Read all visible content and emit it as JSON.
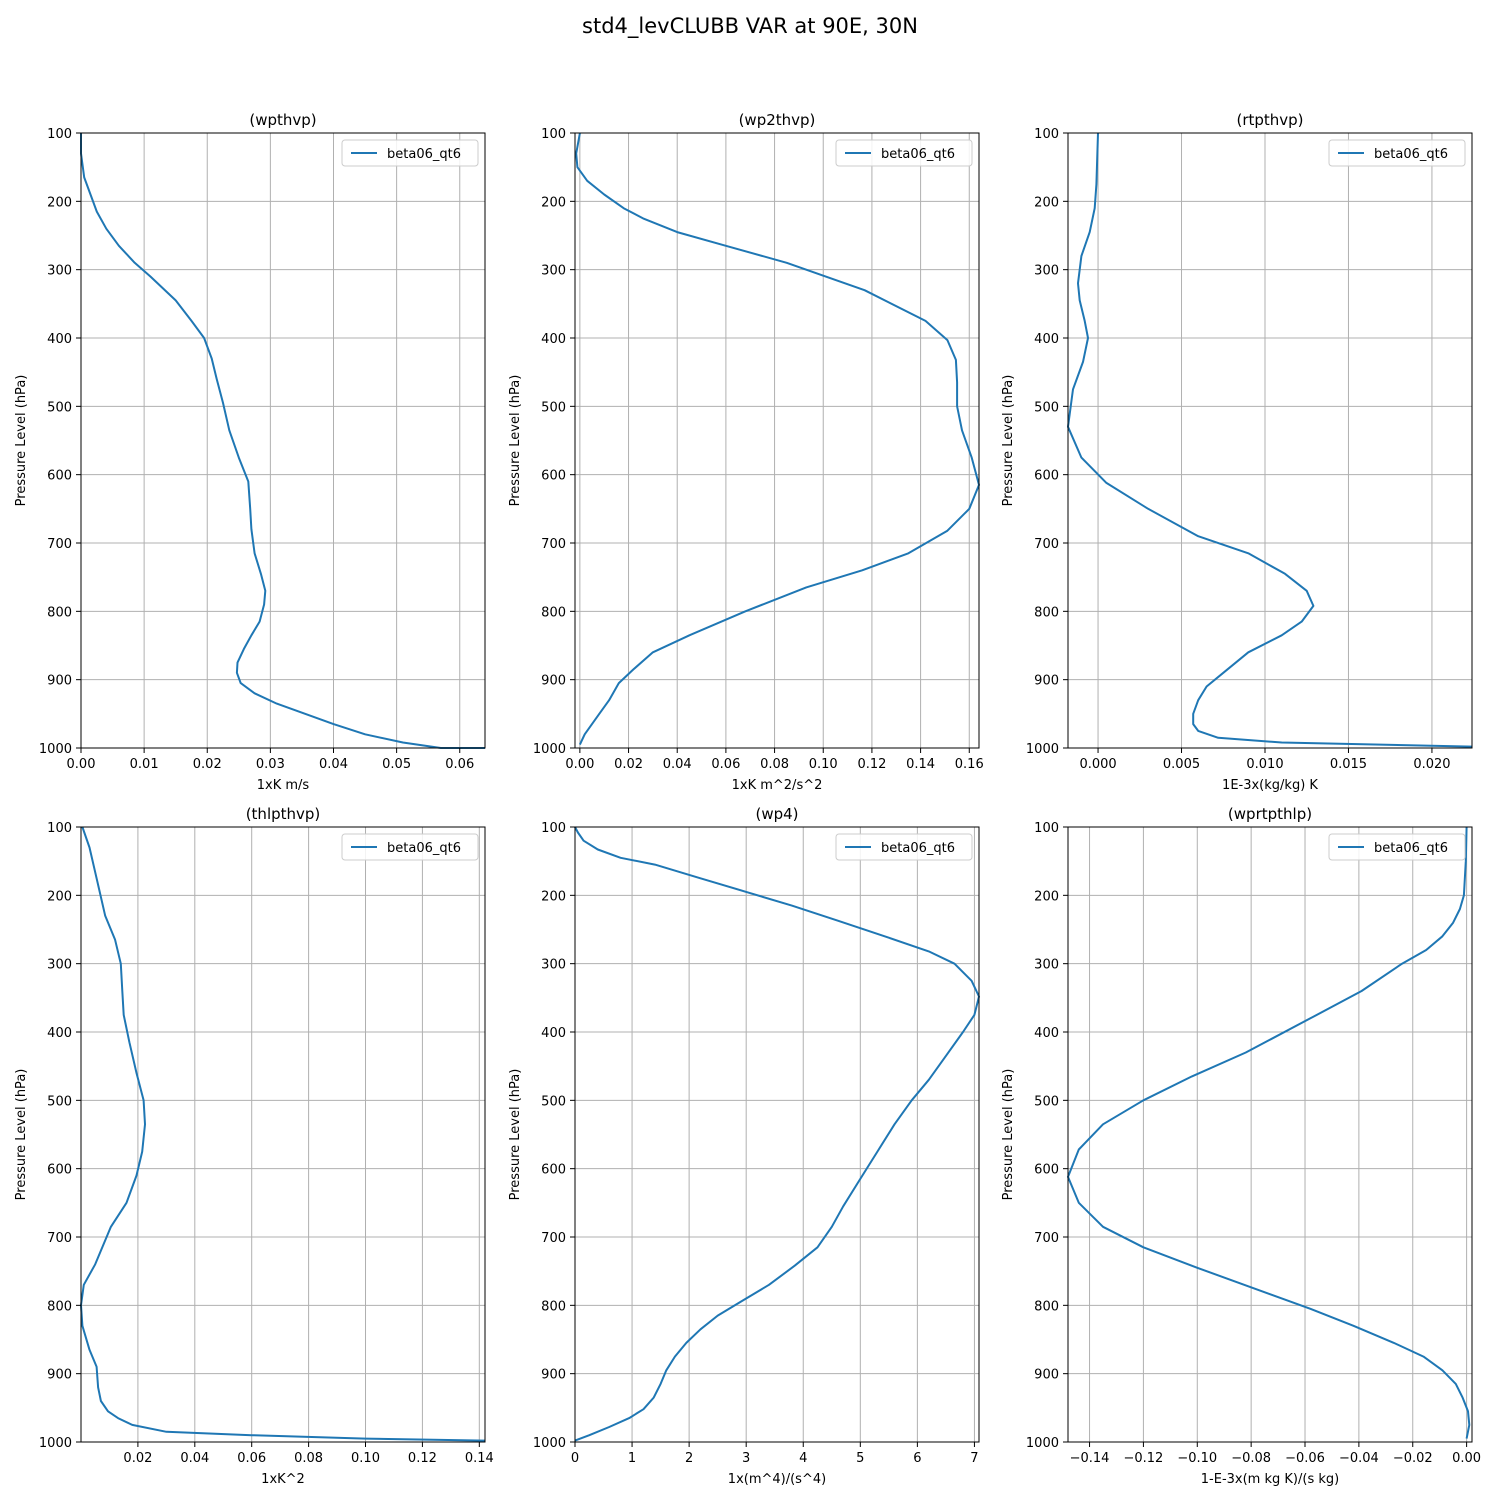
{
  "figure": {
    "suptitle": "std4_levCLUBB VAR at 90E, 30N"
  },
  "style": {
    "line_color": "#1f77b4",
    "grid_color": "#b0b0b0"
  },
  "chart_data": [
    {
      "type": "line",
      "title": "(wpthvp)",
      "xlabel": "1xK m/s",
      "ylabel": "Pressure Level (hPa)",
      "xlim": [
        0,
        0.064
      ],
      "ylim": [
        1000,
        100
      ],
      "y_inverted": true,
      "xticks": [
        0,
        0.01,
        0.02,
        0.03,
        0.04,
        0.05,
        0.06
      ],
      "xtick_labels": [
        "0.00",
        "0.01",
        "0.02",
        "0.03",
        "0.04",
        "0.05",
        "0.06"
      ],
      "yticks": [
        100,
        200,
        300,
        400,
        500,
        600,
        700,
        800,
        900,
        1000
      ],
      "grid": true,
      "legend": "top-right",
      "series": [
        {
          "name": "beta06_qt6",
          "x": [
            0.0,
            0.0,
            0.0005,
            0.0015,
            0.0025,
            0.004,
            0.006,
            0.0085,
            0.011,
            0.015,
            0.0175,
            0.0195,
            0.0207,
            0.0215,
            0.0225,
            0.0235,
            0.025,
            0.0265,
            0.0268,
            0.027,
            0.0275,
            0.0285,
            0.0292,
            0.029,
            0.0283,
            0.027,
            0.0258,
            0.0248,
            0.0247,
            0.0253,
            0.0275,
            0.031,
            0.0355,
            0.04,
            0.045,
            0.051,
            0.057,
            0.062,
            0.064
          ],
          "y": [
            100,
            130,
            165,
            190,
            215,
            240,
            265,
            290,
            310,
            345,
            375,
            400,
            430,
            460,
            495,
            535,
            575,
            610,
            650,
            680,
            715,
            745,
            770,
            790,
            815,
            835,
            855,
            875,
            890,
            905,
            920,
            935,
            950,
            965,
            980,
            992,
            1000,
            1000,
            1000
          ]
        }
      ]
    },
    {
      "type": "line",
      "title": "(wp2thvp)",
      "xlabel": "1xK m^2/s^2",
      "ylabel": "Pressure Level (hPa)",
      "xlim": [
        -0.002,
        0.164
      ],
      "ylim": [
        1000,
        100
      ],
      "y_inverted": true,
      "xticks": [
        0,
        0.02,
        0.04,
        0.06,
        0.08,
        0.1,
        0.12,
        0.14,
        0.16
      ],
      "xtick_labels": [
        "0.00",
        "0.02",
        "0.04",
        "0.06",
        "0.08",
        "0.10",
        "0.12",
        "0.14",
        "0.16"
      ],
      "yticks": [
        100,
        200,
        300,
        400,
        500,
        600,
        700,
        800,
        900,
        1000
      ],
      "grid": true,
      "legend": "top-right",
      "series": [
        {
          "name": "beta06_qt6",
          "x": [
            0.0,
            -0.0015,
            -0.001,
            0.003,
            0.01,
            0.018,
            0.026,
            0.04,
            0.06,
            0.085,
            0.105,
            0.117,
            0.127,
            0.142,
            0.151,
            0.1545,
            0.155,
            0.155,
            0.157,
            0.161,
            0.164,
            0.16,
            0.151,
            0.135,
            0.116,
            0.093,
            0.068,
            0.045,
            0.03,
            0.022,
            0.016,
            0.012,
            0.008,
            0.005,
            0.002,
            0.0
          ],
          "y": [
            100,
            130,
            150,
            170,
            190,
            210,
            225,
            245,
            265,
            290,
            315,
            330,
            348,
            375,
            403,
            432,
            465,
            500,
            535,
            575,
            615,
            650,
            682,
            715,
            740,
            765,
            800,
            835,
            860,
            885,
            905,
            930,
            950,
            965,
            980,
            995
          ]
        }
      ]
    },
    {
      "type": "line",
      "title": "(rtpthvp)",
      "xlabel": "1E-3x(kg/kg) K",
      "ylabel": "Pressure Level (hPa)",
      "xlim": [
        -0.0018,
        0.0224
      ],
      "ylim": [
        1000,
        100
      ],
      "y_inverted": true,
      "xticks": [
        0,
        0.005,
        0.01,
        0.015,
        0.02
      ],
      "xtick_labels": [
        "0.000",
        "0.005",
        "0.010",
        "0.015",
        "0.020"
      ],
      "yticks": [
        100,
        200,
        300,
        400,
        500,
        600,
        700,
        800,
        900,
        1000
      ],
      "grid": true,
      "legend": "top-right",
      "series": [
        {
          "name": "beta06_qt6",
          "x": [
            0.0,
            -0.0001,
            -0.0002,
            -0.0005,
            -0.001,
            -0.0012,
            -0.0011,
            -0.0008,
            -0.0006,
            -0.0009,
            -0.0015,
            -0.0018,
            -0.001,
            0.0005,
            0.003,
            0.006,
            0.009,
            0.0112,
            0.0125,
            0.0129,
            0.0122,
            0.011,
            0.009,
            0.0075,
            0.0065,
            0.006,
            0.0057,
            0.0057,
            0.006,
            0.0072,
            0.011,
            0.0224
          ],
          "y": [
            100,
            175,
            210,
            245,
            280,
            320,
            345,
            375,
            400,
            435,
            475,
            530,
            575,
            612,
            650,
            690,
            715,
            745,
            770,
            792,
            815,
            835,
            860,
            890,
            910,
            930,
            950,
            965,
            975,
            985,
            992,
            998
          ]
        }
      ]
    },
    {
      "type": "line",
      "title": "(thlpthvp)",
      "xlabel": "1xK^2",
      "ylabel": "Pressure Level (hPa)",
      "xlim": [
        0,
        0.142
      ],
      "ylim": [
        1000,
        100
      ],
      "y_inverted": true,
      "xticks": [
        0.02,
        0.04,
        0.06,
        0.08,
        0.1,
        0.12,
        0.14
      ],
      "xtick_labels": [
        "0.02",
        "0.04",
        "0.06",
        "0.08",
        "0.10",
        "0.12",
        "0.14"
      ],
      "yticks": [
        100,
        200,
        300,
        400,
        500,
        600,
        700,
        800,
        900,
        1000
      ],
      "grid": true,
      "legend": "top-right",
      "series": [
        {
          "name": "beta06_qt6",
          "x": [
            0.0005,
            0.003,
            0.0055,
            0.0085,
            0.012,
            0.014,
            0.0145,
            0.015,
            0.017,
            0.0195,
            0.022,
            0.0225,
            0.0215,
            0.0195,
            0.016,
            0.0105,
            0.005,
            0.001,
            0.0,
            0.0005,
            0.003,
            0.0055,
            0.006,
            0.007,
            0.0095,
            0.013,
            0.018,
            0.03,
            0.06,
            0.1,
            0.142
          ],
          "y": [
            100,
            130,
            175,
            230,
            265,
            300,
            340,
            375,
            415,
            460,
            500,
            535,
            575,
            610,
            650,
            685,
            740,
            770,
            800,
            830,
            865,
            890,
            920,
            940,
            955,
            965,
            975,
            985,
            990,
            995,
            998
          ]
        }
      ]
    },
    {
      "type": "line",
      "title": "(wp4)",
      "xlabel": "1x(m^4)/(s^4)",
      "ylabel": "Pressure Level (hPa)",
      "xlim": [
        0,
        7.08
      ],
      "ylim": [
        1000,
        100
      ],
      "y_inverted": true,
      "xticks": [
        0,
        1,
        2,
        3,
        4,
        5,
        6,
        7
      ],
      "xtick_labels": [
        "0",
        "1",
        "2",
        "3",
        "4",
        "5",
        "6",
        "7"
      ],
      "yticks": [
        100,
        200,
        300,
        400,
        500,
        600,
        700,
        800,
        900,
        1000
      ],
      "grid": true,
      "legend": "top-right",
      "series": [
        {
          "name": "beta06_qt6",
          "x": [
            0.0,
            0.05,
            0.15,
            0.4,
            0.8,
            1.4,
            2.2,
            3.0,
            3.8,
            4.6,
            5.5,
            6.2,
            6.65,
            6.95,
            7.08,
            7.0,
            6.8,
            6.5,
            6.2,
            5.9,
            5.6,
            5.3,
            5.0,
            4.7,
            4.5,
            4.25,
            3.85,
            3.4,
            2.9,
            2.5,
            2.2,
            1.95,
            1.75,
            1.6,
            1.5,
            1.38,
            1.2,
            0.95,
            0.6,
            0.25,
            0.0
          ],
          "y": [
            100,
            108,
            120,
            133,
            145,
            155,
            175,
            195,
            215,
            237,
            262,
            282,
            300,
            325,
            348,
            375,
            400,
            435,
            470,
            500,
            535,
            575,
            615,
            655,
            685,
            715,
            742,
            770,
            795,
            815,
            835,
            855,
            875,
            895,
            915,
            935,
            952,
            965,
            978,
            990,
            998
          ]
        }
      ]
    },
    {
      "type": "line",
      "title": "(wprtpthlp)",
      "xlabel": "1-E-3x(m kg K)/(s kg)",
      "ylabel": "Pressure Level (hPa)",
      "xlim": [
        -0.148,
        0.002
      ],
      "ylim": [
        1000,
        100
      ],
      "y_inverted": true,
      "xticks": [
        -0.14,
        -0.12,
        -0.1,
        -0.08,
        -0.06,
        -0.04,
        -0.02,
        0
      ],
      "xtick_labels": [
        "−0.14",
        "−0.12",
        "−0.10",
        "−0.08",
        "−0.06",
        "−0.04",
        "−0.02",
        "0.00"
      ],
      "yticks": [
        100,
        200,
        300,
        400,
        500,
        600,
        700,
        800,
        900,
        1000
      ],
      "grid": true,
      "legend": "top-right",
      "series": [
        {
          "name": "beta06_qt6",
          "x": [
            0.0,
            -0.0003,
            -0.001,
            -0.0025,
            -0.005,
            -0.009,
            -0.015,
            -0.024,
            -0.039,
            -0.058,
            -0.082,
            -0.102,
            -0.12,
            -0.135,
            -0.144,
            -0.148,
            -0.144,
            -0.135,
            -0.12,
            -0.1,
            -0.079,
            -0.058,
            -0.042,
            -0.027,
            -0.016,
            -0.009,
            -0.004,
            -0.0015,
            0.0005,
            0.001,
            0.0
          ],
          "y": [
            100,
            150,
            200,
            220,
            240,
            260,
            280,
            300,
            340,
            380,
            430,
            465,
            500,
            535,
            572,
            612,
            650,
            685,
            715,
            745,
            775,
            805,
            830,
            855,
            875,
            895,
            915,
            935,
            955,
            975,
            995
          ]
        }
      ]
    }
  ]
}
